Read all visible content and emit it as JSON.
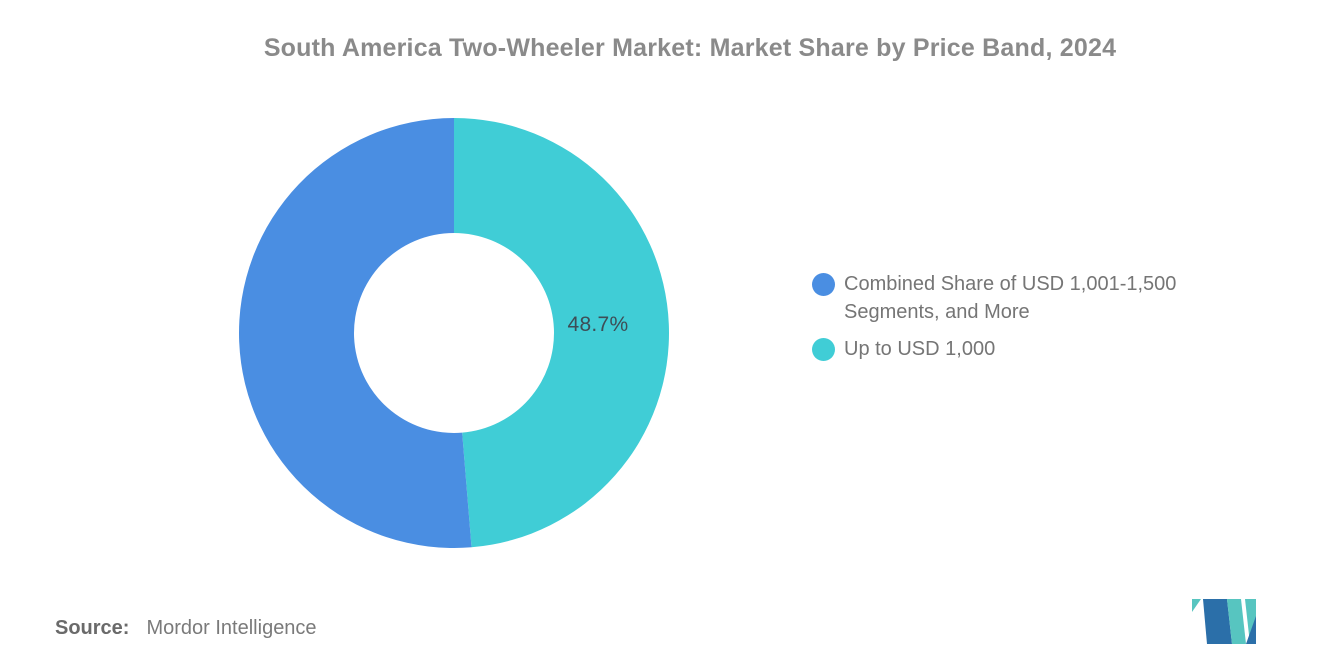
{
  "title": "South America Two-Wheeler Market: Market Share by Price Band, 2024",
  "source": {
    "label": "Source:",
    "value": "Mordor Intelligence"
  },
  "logo": {
    "name": "mordor-intelligence-logo",
    "blue": "#2b6fa9",
    "teal": "#57c5c0"
  },
  "chart_data": {
    "type": "pie",
    "subtype": "donut",
    "title": "South America Two-Wheeler Market: Market Share by Price Band, 2024",
    "unit": "%",
    "series": [
      {
        "name": "Combined Share of USD 1,001-1,500 Segments, and More",
        "value": 51.3,
        "color": "#4a8ee2",
        "data_label": ""
      },
      {
        "name": "Up to USD 1,000",
        "value": 48.7,
        "color": "#40cdd6",
        "data_label": "48.7%"
      }
    ],
    "slice_order_from_top_clockwise": [
      1,
      0
    ],
    "start_angle_deg": 0,
    "inner_radius_ratio": 0.465,
    "legend_position": "right",
    "labels_shown": [
      "48.7%"
    ],
    "background": "#ffffff"
  }
}
